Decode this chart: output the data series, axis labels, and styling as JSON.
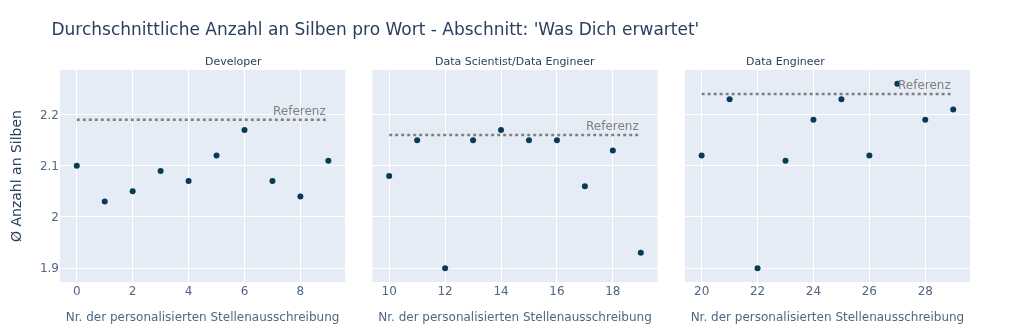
{
  "chart_data": [
    {
      "type": "scatter",
      "title": "Durchschnittliche Anzahl an Silben pro Wort - Abschnitt: 'Was Dich erwartet'",
      "subtitle": "Developer",
      "xlabel": "Nr. der personalisierten Stellenausschreibung",
      "ylabel": "Ø Anzahl an Silben",
      "x": [
        0,
        1,
        2,
        3,
        4,
        5,
        6,
        7,
        8,
        9
      ],
      "series": [
        {
          "color": "#053d55",
          "values": [
            2.1,
            2.03,
            2.05,
            2.09,
            2.07,
            2.12,
            2.17,
            2.07,
            2.04,
            2.11
          ]
        }
      ],
      "ref_lines": [
        {
          "axis": "y",
          "value": 2.19,
          "label": "Referenz",
          "color": "#808080",
          "line_style": "dotted"
        }
      ],
      "xlim": [
        -0.6,
        9.6
      ],
      "xticks": [
        0,
        2,
        4,
        6,
        8
      ],
      "ylim": [
        1.873,
        2.287
      ],
      "yticks": [
        1.9,
        2,
        2.1,
        2.2
      ],
      "grid": true,
      "marker": "circle"
    },
    {
      "type": "scatter",
      "subtitle": "Data Scientist/Data Engineer",
      "xlabel": "Nr. der personalisierten Stellenausschreibung",
      "x": [
        10,
        11,
        12,
        13,
        14,
        15,
        16,
        17,
        18,
        19
      ],
      "series": [
        {
          "color": "#053d55",
          "values": [
            2.08,
            2.15,
            1.9,
            2.15,
            2.17,
            2.15,
            2.15,
            2.06,
            2.13,
            1.93
          ]
        }
      ],
      "ref_lines": [
        {
          "axis": "y",
          "value": 2.16,
          "label": "Referenz",
          "color": "#808080",
          "line_style": "dotted"
        }
      ],
      "xlim": [
        9.4,
        19.6
      ],
      "xticks": [
        10,
        12,
        14,
        16,
        18
      ],
      "ylim": [
        1.873,
        2.287
      ],
      "yticks": [
        1.9,
        2,
        2.1,
        2.2
      ],
      "tick_labels": "x",
      "grid": true,
      "marker": "circle"
    },
    {
      "type": "scatter",
      "subtitle": "Data Engineer",
      "xlabel": "Nr. der personalisierten Stellenausschreibung",
      "x": [
        20,
        21,
        22,
        23,
        24,
        25,
        26,
        27,
        28,
        29
      ],
      "series": [
        {
          "color": "#053d55",
          "values": [
            2.12,
            2.23,
            1.9,
            2.11,
            2.19,
            2.23,
            2.12,
            2.26,
            2.19,
            2.21
          ]
        }
      ],
      "ref_lines": [
        {
          "axis": "y",
          "value": 2.24,
          "label": "Referenz",
          "color": "#808080",
          "line_style": "dotted"
        }
      ],
      "xlim": [
        19.4,
        29.6
      ],
      "xticks": [
        20,
        22,
        24,
        26,
        28
      ],
      "ylim": [
        1.873,
        2.287
      ],
      "yticks": [
        1.9,
        2,
        2.1,
        2.2
      ],
      "tick_labels": "x",
      "grid": true,
      "marker": "circle"
    }
  ]
}
